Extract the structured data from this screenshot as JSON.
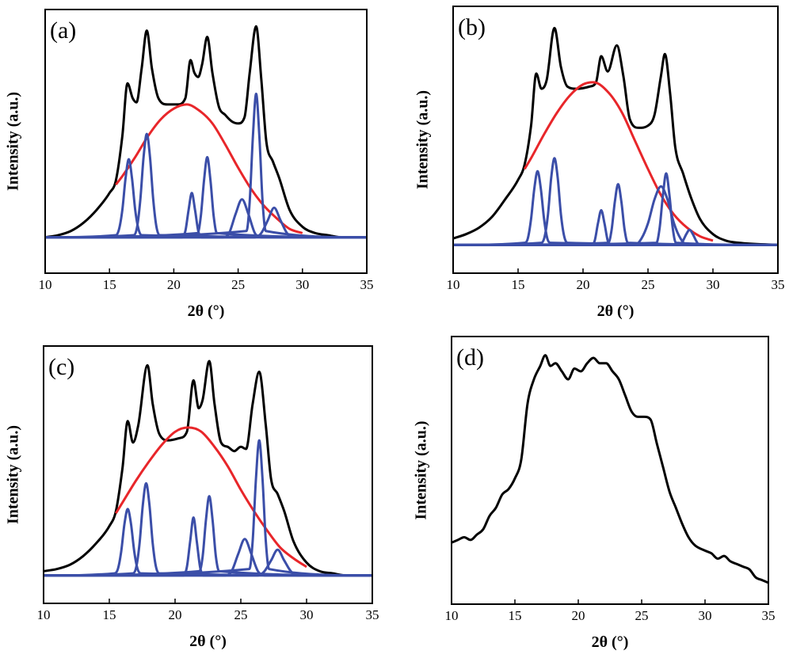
{
  "chart_data": [
    {
      "type": "line",
      "title": "(a)",
      "xlabel": "2θ (°)",
      "ylabel": "Intensity (a.u.)",
      "xlim": [
        10,
        35
      ],
      "xticks": [
        10,
        15,
        20,
        25,
        30,
        35
      ],
      "ylim": [
        -17,
        108
      ],
      "series": [
        {
          "color": "#000000",
          "x": [
            10,
            11,
            12,
            13,
            14,
            15,
            15.5,
            16,
            16.4,
            16.8,
            17.1,
            17.5,
            17.9,
            18.3,
            18.8,
            19.5,
            20.3,
            20.9,
            21.3,
            21.6,
            21.9,
            22.2,
            22.6,
            23,
            23.5,
            24,
            24.5,
            25,
            25.5,
            25.9,
            26.4,
            26.8,
            27.2,
            27.7,
            28.2,
            29,
            30,
            31,
            32,
            33,
            35
          ],
          "values": [
            0,
            1,
            3,
            7,
            13,
            21,
            27,
            48,
            73,
            66,
            64,
            80,
            98,
            80,
            66,
            63,
            63,
            66,
            84,
            78,
            76,
            82,
            95,
            78,
            62,
            58,
            55,
            54,
            57,
            78,
            100,
            75,
            45,
            36,
            28,
            13,
            5,
            2,
            1,
            0,
            0
          ]
        },
        {
          "color": "#e8262a",
          "x": [
            15.5,
            16,
            17,
            18,
            19,
            20,
            21,
            22,
            23,
            24,
            25,
            26,
            27,
            28,
            29,
            30
          ],
          "values": [
            25,
            29,
            38,
            48,
            56,
            61,
            63,
            60,
            54,
            44,
            33,
            23,
            15,
            9,
            4,
            2
          ]
        },
        {
          "color": "#3b4ea8",
          "x": [
            10,
            15.5,
            15.75,
            16,
            16.25,
            16.5,
            16.75,
            17,
            17.25,
            17.5,
            35
          ],
          "values": [
            0,
            1,
            4,
            13,
            28,
            37,
            28,
            13,
            4,
            1,
            0
          ]
        },
        {
          "color": "#3b4ea8",
          "x": [
            10,
            16.9,
            17.15,
            17.4,
            17.65,
            17.9,
            18.15,
            18.4,
            18.65,
            18.9,
            35
          ],
          "values": [
            0,
            1,
            5,
            18,
            38,
            49,
            38,
            18,
            5,
            1,
            0
          ]
        },
        {
          "color": "#3b4ea8",
          "x": [
            10,
            20.65,
            20.9,
            21.15,
            21.4,
            21.65,
            21.9,
            22.15,
            35
          ],
          "values": [
            0,
            0,
            3,
            13,
            21,
            13,
            3,
            0,
            0
          ]
        },
        {
          "color": "#3b4ea8",
          "x": [
            10,
            21.85,
            22.1,
            22.35,
            22.6,
            22.85,
            23.1,
            23.35,
            35
          ],
          "values": [
            0,
            2,
            10,
            27,
            38,
            27,
            10,
            2,
            0
          ]
        },
        {
          "color": "#3b4ea8",
          "x": [
            10,
            23.8,
            24.3,
            24.8,
            25.3,
            25.8,
            26.3,
            26.8,
            35
          ],
          "values": [
            0,
            0,
            2,
            11,
            18,
            11,
            2,
            0,
            0
          ]
        },
        {
          "color": "#3b4ea8",
          "x": [
            10,
            25.65,
            25.9,
            26.15,
            26.4,
            26.65,
            26.9,
            27.15,
            35
          ],
          "values": [
            0,
            3,
            17,
            48,
            68,
            48,
            17,
            3,
            0
          ]
        },
        {
          "color": "#3b4ea8",
          "x": [
            10,
            26.3,
            26.8,
            27.3,
            27.8,
            28.3,
            28.8,
            29.3,
            35
          ],
          "values": [
            0,
            0,
            2,
            8,
            14,
            8,
            2,
            0,
            0
          ]
        }
      ]
    },
    {
      "type": "line",
      "title": "(b)",
      "xlabel": "2θ (°)",
      "ylabel": "Intensity (a.u.)",
      "xlim": [
        10,
        35
      ],
      "xticks": [
        10,
        15,
        20,
        25,
        30,
        35
      ],
      "ylim": [
        -13,
        110
      ],
      "series": [
        {
          "color": "#000000",
          "x": [
            10,
            11,
            12,
            13,
            14,
            15,
            15.5,
            16,
            16.4,
            16.8,
            17.2,
            17.8,
            18.3,
            18.8,
            19.5,
            20.5,
            21,
            21.4,
            21.9,
            22.6,
            23.1,
            23.6,
            24.3,
            25,
            25.5,
            26,
            26.3,
            26.7,
            27.1,
            27.7,
            28.3,
            29,
            30,
            31,
            32,
            35
          ],
          "values": [
            3,
            5,
            8,
            13,
            21,
            30,
            37,
            55,
            79,
            72,
            76,
            100,
            82,
            73,
            72,
            73,
            75,
            87,
            80,
            92,
            78,
            58,
            54,
            55,
            60,
            78,
            88,
            70,
            45,
            33,
            22,
            12,
            5,
            2,
            1,
            0
          ]
        },
        {
          "color": "#e8262a",
          "x": [
            15.5,
            16,
            17,
            18,
            19,
            20,
            20.8,
            22,
            23,
            24,
            25,
            26,
            27,
            28,
            29,
            30
          ],
          "values": [
            35,
            40,
            51,
            61,
            69,
            74,
            75,
            70,
            61,
            48,
            35,
            23,
            14,
            8,
            4,
            2
          ]
        },
        {
          "color": "#3b4ea8",
          "x": [
            10,
            15.5,
            15.75,
            16,
            16.25,
            16.5,
            16.75,
            17,
            17.25,
            17.5,
            35
          ],
          "values": [
            0,
            1,
            3,
            12,
            26,
            34,
            26,
            12,
            3,
            1,
            0
          ]
        },
        {
          "color": "#3b4ea8",
          "x": [
            10,
            16.8,
            17.05,
            17.3,
            17.55,
            17.8,
            18.05,
            18.3,
            18.55,
            18.8,
            35
          ],
          "values": [
            0,
            1,
            4,
            14,
            31,
            40,
            31,
            14,
            4,
            1,
            0
          ]
        },
        {
          "color": "#3b4ea8",
          "x": [
            10,
            20.65,
            20.9,
            21.15,
            21.4,
            21.65,
            21.9,
            22.15,
            35
          ],
          "values": [
            0,
            0,
            2,
            10,
            16,
            10,
            2,
            0,
            0
          ]
        },
        {
          "color": "#3b4ea8",
          "x": [
            10,
            21.95,
            22.2,
            22.45,
            22.7,
            22.95,
            23.2,
            23.45,
            35
          ],
          "values": [
            0,
            1,
            7,
            20,
            28,
            20,
            7,
            1,
            0
          ]
        },
        {
          "color": "#3b4ea8",
          "x": [
            10,
            24,
            24.5,
            25,
            25.5,
            26,
            26.5,
            27,
            27.5,
            28,
            35
          ],
          "values": [
            0,
            0,
            3,
            10,
            21,
            27,
            21,
            10,
            3,
            0,
            0
          ]
        },
        {
          "color": "#3b4ea8",
          "x": [
            10,
            25.65,
            25.9,
            26.15,
            26.4,
            26.65,
            26.9,
            27.15,
            35
          ],
          "values": [
            0,
            1,
            8,
            23,
            33,
            23,
            8,
            1,
            0
          ]
        },
        {
          "color": "#3b4ea8",
          "x": [
            10,
            27.45,
            27.7,
            27.95,
            28.2,
            28.45,
            28.7,
            28.95,
            35
          ],
          "values": [
            0,
            0,
            2,
            5,
            7,
            5,
            2,
            0,
            0
          ]
        }
      ]
    },
    {
      "type": "line",
      "title": "(c)",
      "xlabel": "2θ (°)",
      "ylabel": "Intensity (a.u.)",
      "xlim": [
        10,
        35
      ],
      "xticks": [
        10,
        15,
        20,
        25,
        30,
        35
      ],
      "ylim": [
        -13,
        107
      ],
      "series": [
        {
          "color": "#000000",
          "x": [
            10,
            11,
            12,
            13,
            14,
            15,
            15.5,
            16,
            16.4,
            16.8,
            17.2,
            17.9,
            18.3,
            18.8,
            19.5,
            20.3,
            20.9,
            21.4,
            21.8,
            22.1,
            22.6,
            23,
            23.5,
            24,
            24.5,
            25,
            25.4,
            25.9,
            26.4,
            26.9,
            27.3,
            27.8,
            28.3,
            29,
            30,
            31,
            32,
            33,
            35
          ],
          "values": [
            2,
            3,
            5,
            9,
            15,
            23,
            30,
            50,
            72,
            62,
            70,
            98,
            80,
            66,
            63,
            64,
            67,
            91,
            78,
            82,
            100,
            80,
            62,
            60,
            58,
            60,
            59,
            80,
            95,
            70,
            45,
            38,
            30,
            16,
            6,
            2,
            1,
            0,
            0
          ]
        },
        {
          "color": "#e8262a",
          "x": [
            15.5,
            16,
            17,
            18,
            19,
            20,
            21,
            22,
            23,
            24,
            25,
            26,
            27,
            28,
            29,
            30
          ],
          "values": [
            29,
            34,
            44,
            53,
            61,
            67,
            69,
            67,
            60,
            51,
            40,
            30,
            21,
            13,
            8,
            4
          ]
        },
        {
          "color": "#3b4ea8",
          "x": [
            10,
            15.4,
            15.65,
            15.9,
            16.15,
            16.4,
            16.65,
            16.9,
            17.15,
            17.4,
            35
          ],
          "values": [
            0,
            1,
            3,
            11,
            24,
            31,
            24,
            11,
            3,
            1,
            0
          ]
        },
        {
          "color": "#3b4ea8",
          "x": [
            10,
            16.8,
            17.05,
            17.3,
            17.55,
            17.8,
            18.05,
            18.3,
            18.55,
            18.8,
            35
          ],
          "values": [
            0,
            1,
            4,
            15,
            33,
            43,
            33,
            15,
            4,
            1,
            0
          ]
        },
        {
          "color": "#3b4ea8",
          "x": [
            10,
            20.65,
            20.9,
            21.15,
            21.4,
            21.65,
            21.9,
            22.15,
            35
          ],
          "values": [
            0,
            0,
            4,
            16,
            27,
            16,
            4,
            0,
            0
          ]
        },
        {
          "color": "#3b4ea8",
          "x": [
            10,
            21.85,
            22.1,
            22.35,
            22.6,
            22.85,
            23.1,
            23.35,
            35
          ],
          "values": [
            0,
            2,
            9,
            26,
            37,
            26,
            9,
            2,
            0
          ]
        },
        {
          "color": "#3b4ea8",
          "x": [
            10,
            23.8,
            24.3,
            24.8,
            25.3,
            25.8,
            26.3,
            26.8,
            35
          ],
          "values": [
            0,
            0,
            2,
            10,
            17,
            10,
            2,
            0,
            0
          ]
        },
        {
          "color": "#3b4ea8",
          "x": [
            10,
            25.65,
            25.9,
            26.15,
            26.4,
            26.65,
            26.9,
            27.15,
            35
          ],
          "values": [
            0,
            3,
            16,
            45,
            63,
            45,
            16,
            3,
            0
          ]
        },
        {
          "color": "#3b4ea8",
          "x": [
            10,
            26.3,
            26.8,
            27.3,
            27.8,
            28.3,
            28.8,
            29.3,
            35
          ],
          "values": [
            0,
            0,
            2,
            7,
            12,
            7,
            2,
            0,
            0
          ]
        }
      ]
    },
    {
      "type": "line",
      "title": "(d)",
      "xlabel": "2θ (°)",
      "ylabel": "Intensity (a.u.)",
      "xlim": [
        10,
        35
      ],
      "xticks": [
        10,
        15,
        20,
        25,
        30,
        35
      ],
      "ylim": [
        0,
        100
      ],
      "series": [
        {
          "color": "#000000",
          "x": [
            10,
            10.5,
            11,
            11.5,
            12,
            12.5,
            13,
            13.5,
            14,
            14.5,
            15,
            15.5,
            16,
            16.5,
            17,
            17.4,
            17.8,
            18.2,
            18.7,
            19.2,
            19.7,
            20.2,
            20.7,
            21.2,
            21.7,
            22.2,
            22.7,
            23.2,
            23.7,
            24.2,
            24.7,
            25.2,
            25.7,
            26.2,
            26.7,
            27.2,
            27.7,
            28.2,
            28.7,
            29.2,
            30,
            30.5,
            31,
            31.5,
            32,
            32.5,
            33,
            33.5,
            34,
            34.5,
            35
          ],
          "values": [
            23,
            24,
            25,
            24,
            26,
            28,
            33,
            36,
            41,
            43,
            47,
            54,
            75,
            84,
            89,
            93,
            89,
            90,
            87,
            84,
            88,
            87,
            90,
            92,
            90,
            90,
            87,
            84,
            78,
            72,
            70,
            70,
            69,
            60,
            51,
            42,
            36,
            30,
            25,
            22,
            20,
            19,
            17,
            18,
            16,
            15,
            14,
            13,
            10,
            9,
            8
          ]
        }
      ]
    }
  ]
}
